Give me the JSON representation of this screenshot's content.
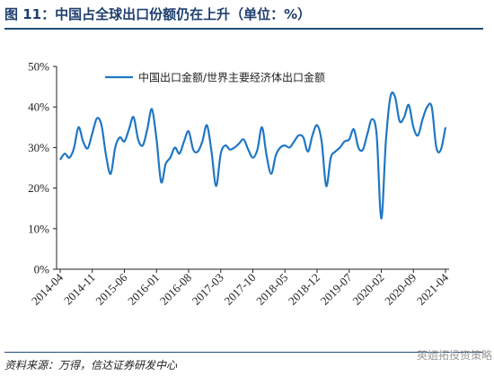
{
  "figure": {
    "title": "图 11：中国占全球出口份额仍在上升（单位：%）",
    "source": "资料来源：万得，信达证券研发中心",
    "watermark": "英姐拓投资策略"
  },
  "chart_data": {
    "type": "line",
    "title": "",
    "xlabel": "",
    "ylabel": "",
    "ylim": [
      0,
      50
    ],
    "yticks": [
      "0%",
      "10%",
      "20%",
      "30%",
      "40%",
      "50%"
    ],
    "ytick_values": [
      0,
      10,
      20,
      30,
      40,
      50
    ],
    "xticks": [
      "2014-04",
      "2014-11",
      "2015-06",
      "2016-01",
      "2016-08",
      "2017-03",
      "2017-10",
      "2018-05",
      "2018-12",
      "2019-07",
      "2020-02",
      "2020-09",
      "2021-04"
    ],
    "grid": false,
    "legend_position": "top",
    "color": "#1f77c4",
    "series": [
      {
        "name": "中国出口金额/世界主要经济体出口金额",
        "x": [
          "2014-04",
          "2014-05",
          "2014-06",
          "2014-07",
          "2014-08",
          "2014-09",
          "2014-10",
          "2014-11",
          "2014-12",
          "2015-01",
          "2015-02",
          "2015-03",
          "2015-04",
          "2015-05",
          "2015-06",
          "2015-07",
          "2015-08",
          "2015-09",
          "2015-10",
          "2015-11",
          "2015-12",
          "2016-01",
          "2016-02",
          "2016-03",
          "2016-04",
          "2016-05",
          "2016-06",
          "2016-07",
          "2016-08",
          "2016-09",
          "2016-10",
          "2016-11",
          "2016-12",
          "2017-01",
          "2017-02",
          "2017-03",
          "2017-04",
          "2017-05",
          "2017-06",
          "2017-07",
          "2017-08",
          "2017-09",
          "2017-10",
          "2017-11",
          "2017-12",
          "2018-01",
          "2018-02",
          "2018-03",
          "2018-04",
          "2018-05",
          "2018-06",
          "2018-07",
          "2018-08",
          "2018-09",
          "2018-10",
          "2018-11",
          "2018-12",
          "2019-01",
          "2019-02",
          "2019-03",
          "2019-04",
          "2019-05",
          "2019-06",
          "2019-07",
          "2019-08",
          "2019-09",
          "2019-10",
          "2019-11",
          "2019-12",
          "2020-01",
          "2020-02",
          "2020-03",
          "2020-04",
          "2020-05",
          "2020-06",
          "2020-07",
          "2020-08",
          "2020-09",
          "2020-10",
          "2020-11",
          "2020-12",
          "2021-01",
          "2021-02",
          "2021-03",
          "2021-04"
        ],
        "values": [
          27.0,
          28.5,
          27.5,
          29.8,
          35.0,
          31.5,
          29.8,
          33.5,
          37.2,
          35.5,
          28.0,
          23.5,
          30.0,
          32.5,
          31.5,
          34.5,
          37.5,
          32.0,
          30.5,
          34.5,
          39.5,
          32.0,
          21.5,
          26.0,
          27.5,
          30.0,
          28.5,
          31.5,
          34.0,
          29.5,
          29.0,
          31.5,
          35.5,
          29.0,
          20.5,
          28.5,
          30.5,
          29.5,
          30.0,
          31.0,
          32.0,
          29.5,
          27.5,
          29.5,
          35.0,
          28.0,
          23.5,
          28.0,
          30.0,
          30.5,
          30.0,
          31.5,
          33.0,
          32.5,
          29.0,
          33.0,
          35.5,
          31.5,
          20.5,
          27.5,
          29.0,
          30.0,
          31.5,
          32.0,
          34.5,
          30.0,
          29.5,
          33.5,
          37.0,
          33.0,
          12.5,
          31.5,
          42.5,
          42.5,
          36.5,
          37.5,
          40.5,
          35.0,
          33.0,
          37.0,
          40.0,
          40.0,
          30.0,
          29.5,
          35.0
        ]
      }
    ]
  }
}
